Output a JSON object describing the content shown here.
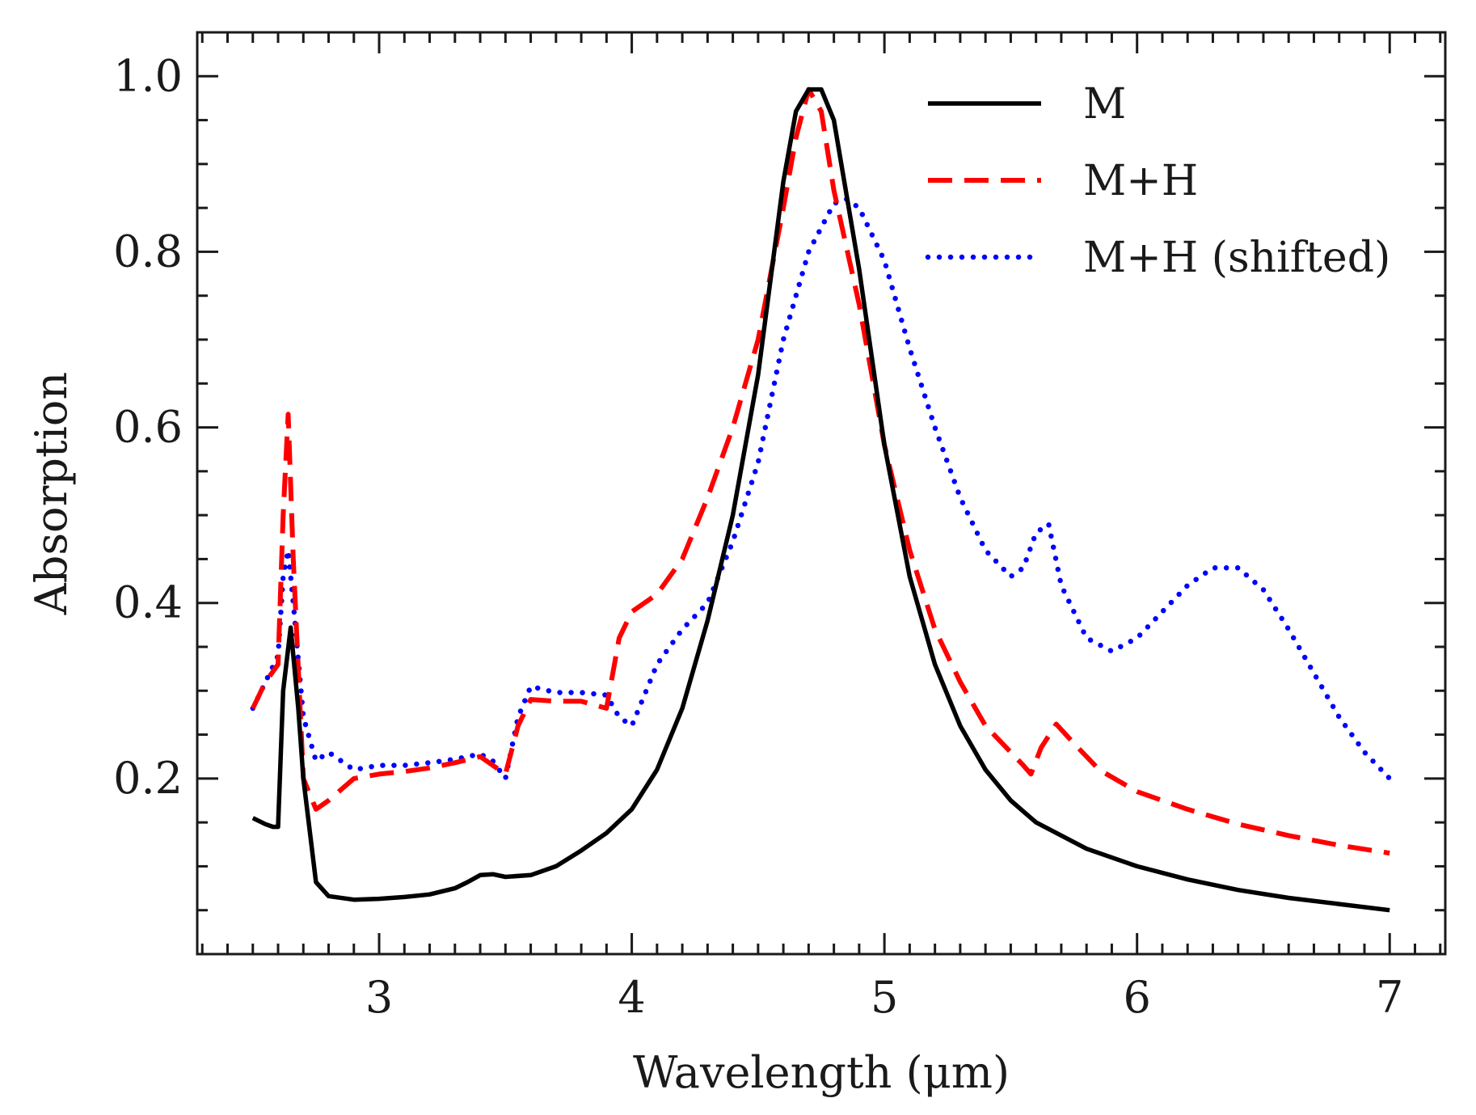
{
  "chart_data": {
    "type": "line",
    "title": "",
    "xlabel": "Wavelength (μm)",
    "ylabel": "Absorption",
    "xlim": [
      2.28,
      7.22
    ],
    "ylim": [
      0.0,
      1.05
    ],
    "x_ticks": [
      3,
      4,
      5,
      6,
      7
    ],
    "x_tick_labels": [
      "3",
      "4",
      "5",
      "6",
      "7"
    ],
    "y_ticks": [
      0.2,
      0.4,
      0.6,
      0.8,
      1.0
    ],
    "y_tick_labels": [
      "0.2",
      "0.4",
      "0.6",
      "0.8",
      "1.0"
    ],
    "grid": false,
    "legend_position": "top-right",
    "series": [
      {
        "name": "M",
        "color": "#000000",
        "style": "solid",
        "x": [
          2.5,
          2.55,
          2.58,
          2.6,
          2.62,
          2.65,
          2.68,
          2.7,
          2.75,
          2.8,
          2.9,
          3.0,
          3.1,
          3.2,
          3.3,
          3.35,
          3.4,
          3.45,
          3.5,
          3.6,
          3.7,
          3.8,
          3.9,
          4.0,
          4.1,
          4.2,
          4.3,
          4.4,
          4.5,
          4.6,
          4.65,
          4.7,
          4.75,
          4.8,
          4.9,
          5.0,
          5.1,
          5.2,
          5.3,
          5.4,
          5.5,
          5.6,
          5.8,
          6.0,
          6.2,
          6.4,
          6.6,
          6.8,
          7.0
        ],
        "y": [
          0.155,
          0.148,
          0.145,
          0.145,
          0.3,
          0.372,
          0.28,
          0.2,
          0.082,
          0.066,
          0.062,
          0.063,
          0.065,
          0.068,
          0.075,
          0.082,
          0.09,
          0.091,
          0.088,
          0.09,
          0.1,
          0.118,
          0.138,
          0.165,
          0.21,
          0.28,
          0.38,
          0.5,
          0.66,
          0.88,
          0.96,
          0.985,
          0.985,
          0.95,
          0.78,
          0.58,
          0.43,
          0.33,
          0.26,
          0.21,
          0.175,
          0.15,
          0.12,
          0.1,
          0.085,
          0.073,
          0.064,
          0.057,
          0.05
        ]
      },
      {
        "name": "M+H",
        "color": "#ff0000",
        "style": "dashed",
        "x": [
          2.5,
          2.55,
          2.6,
          2.62,
          2.64,
          2.66,
          2.7,
          2.75,
          2.8,
          2.9,
          3.0,
          3.1,
          3.2,
          3.3,
          3.4,
          3.45,
          3.5,
          3.55,
          3.6,
          3.7,
          3.8,
          3.9,
          3.95,
          4.0,
          4.1,
          4.2,
          4.3,
          4.4,
          4.5,
          4.6,
          4.65,
          4.7,
          4.75,
          4.8,
          4.9,
          5.0,
          5.1,
          5.2,
          5.3,
          5.4,
          5.5,
          5.55,
          5.58,
          5.62,
          5.68,
          5.75,
          5.85,
          6.0,
          6.2,
          6.4,
          6.6,
          6.8,
          7.0
        ],
        "y": [
          0.28,
          0.31,
          0.33,
          0.5,
          0.615,
          0.45,
          0.2,
          0.165,
          0.175,
          0.2,
          0.205,
          0.208,
          0.212,
          0.218,
          0.225,
          0.215,
          0.205,
          0.26,
          0.29,
          0.288,
          0.288,
          0.28,
          0.36,
          0.39,
          0.41,
          0.45,
          0.52,
          0.6,
          0.7,
          0.85,
          0.93,
          0.985,
          0.96,
          0.87,
          0.74,
          0.58,
          0.46,
          0.37,
          0.31,
          0.26,
          0.23,
          0.215,
          0.205,
          0.235,
          0.262,
          0.24,
          0.21,
          0.185,
          0.165,
          0.148,
          0.135,
          0.124,
          0.115
        ]
      },
      {
        "name": "M+H (shifted)",
        "color": "#0000ff",
        "style": "dotted",
        "x": [
          2.5,
          2.55,
          2.6,
          2.62,
          2.64,
          2.66,
          2.7,
          2.75,
          2.8,
          2.9,
          3.0,
          3.1,
          3.2,
          3.3,
          3.4,
          3.45,
          3.5,
          3.55,
          3.6,
          3.7,
          3.8,
          3.9,
          3.95,
          4.0,
          4.1,
          4.2,
          4.3,
          4.4,
          4.5,
          4.6,
          4.7,
          4.8,
          4.85,
          4.9,
          5.0,
          5.1,
          5.2,
          5.3,
          5.4,
          5.5,
          5.55,
          5.6,
          5.65,
          5.7,
          5.8,
          5.9,
          6.0,
          6.1,
          6.2,
          6.3,
          6.4,
          6.5,
          6.6,
          6.7,
          6.8,
          6.9,
          7.0
        ],
        "y": [
          0.28,
          0.31,
          0.34,
          0.43,
          0.46,
          0.4,
          0.27,
          0.22,
          0.23,
          0.21,
          0.215,
          0.215,
          0.218,
          0.222,
          0.228,
          0.22,
          0.2,
          0.27,
          0.305,
          0.298,
          0.298,
          0.295,
          0.27,
          0.26,
          0.33,
          0.37,
          0.4,
          0.47,
          0.56,
          0.7,
          0.8,
          0.855,
          0.86,
          0.85,
          0.79,
          0.69,
          0.6,
          0.52,
          0.46,
          0.43,
          0.44,
          0.48,
          0.49,
          0.42,
          0.36,
          0.345,
          0.36,
          0.39,
          0.42,
          0.44,
          0.44,
          0.415,
          0.37,
          0.32,
          0.27,
          0.23,
          0.2
        ]
      }
    ]
  }
}
